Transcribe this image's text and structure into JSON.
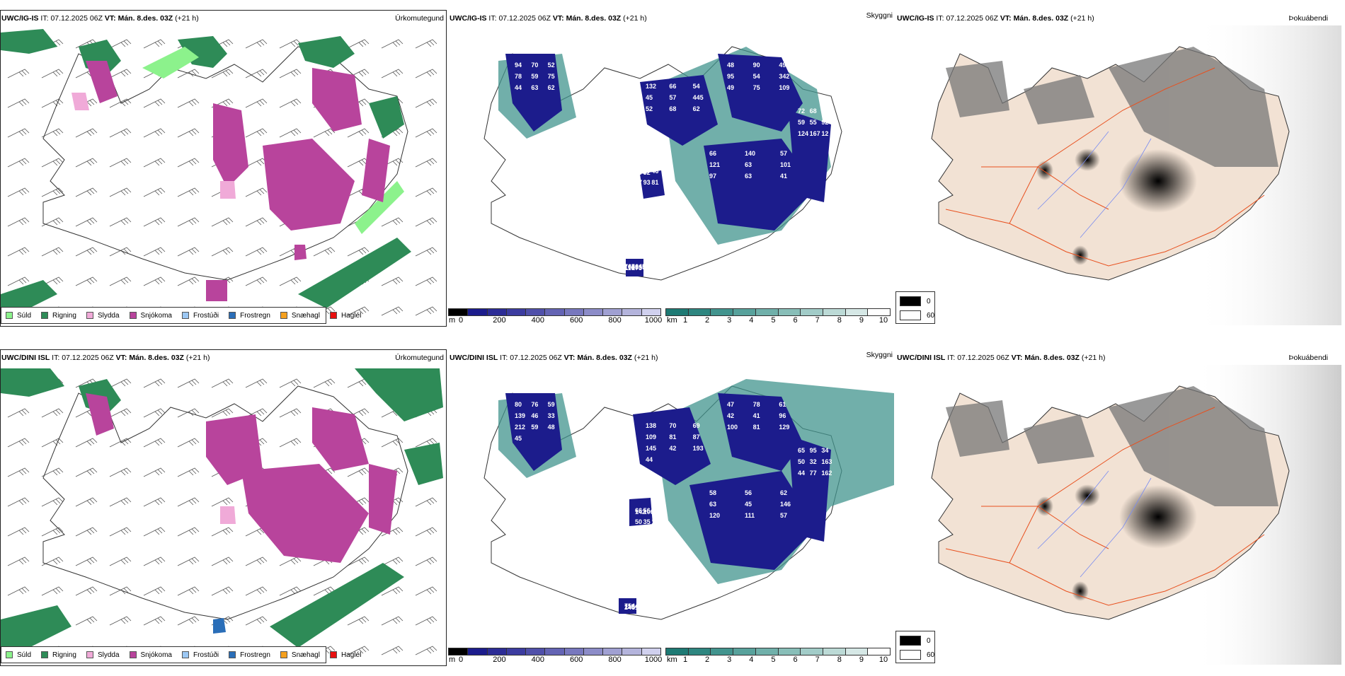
{
  "panels": [
    {
      "id": "top-precip",
      "model": "UWC/IG-IS",
      "it_label": "IT:",
      "it_value": "07.12.2025 06Z",
      "vt_label": "VT:",
      "vt_value": "Mán. 8.des. 03Z",
      "lead": "(+21 h)",
      "product": "Úrkomutegund"
    },
    {
      "id": "top-cloud",
      "model": "UWC/IG-IS",
      "it_label": "IT:",
      "it_value": "07.12.2025 06Z",
      "vt_label": "VT:",
      "vt_value": "Mán. 8.des. 03Z",
      "lead": "(+21 h)",
      "product": "Skyggni",
      "labels": [
        "94",
        "132",
        "48",
        "66",
        "72",
        "62",
        "76",
        "70",
        "66",
        "90",
        "140",
        "68",
        "57",
        "56",
        "52",
        "54",
        "49",
        "57",
        "43",
        "46",
        "45",
        "78",
        "45",
        "95",
        "121",
        "59",
        "57",
        "105",
        "59",
        "57",
        "54",
        "63",
        "55",
        "93",
        "88",
        "75",
        "445",
        "342",
        "101",
        "92",
        "81",
        "55",
        "44",
        "52",
        "49",
        "97",
        "124",
        "104",
        "116",
        "63",
        "68",
        "75",
        "63",
        "167",
        "82",
        "173",
        "62",
        "62",
        "109",
        "41",
        "12"
      ]
    },
    {
      "id": "top-fog",
      "model": "UWC/IG-IS",
      "it_label": "IT:",
      "it_value": "07.12.2025 06Z",
      "vt_label": "VT:",
      "vt_value": "Mán. 8.des. 03Z",
      "lead": "(+21 h)",
      "product": "Þokuábendi"
    },
    {
      "id": "bot-precip",
      "model": "UWC/DINI ISL",
      "it_label": "IT:",
      "it_value": "07.12.2025 06Z",
      "vt_label": "VT:",
      "vt_value": "Mán. 8.des. 03Z",
      "lead": "(+21 h)",
      "product": "Úrkomutegund"
    },
    {
      "id": "bot-cloud",
      "model": "UWC/DINI ISL",
      "it_label": "IT:",
      "it_value": "07.12.2025 06Z",
      "vt_label": "VT:",
      "vt_value": "Mán. 8.des. 03Z",
      "lead": "(+21 h)",
      "product": "Skyggni",
      "labels": [
        "80",
        "138",
        "47",
        "58",
        "65",
        "66",
        "75",
        "76",
        "70",
        "78",
        "56",
        "95",
        "56",
        "44",
        "59",
        "69",
        "61",
        "62",
        "34",
        "45",
        "44",
        "139",
        "109",
        "42",
        "63",
        "50",
        "50",
        "115",
        "46",
        "81",
        "41",
        "45",
        "32",
        "35",
        "34",
        "33",
        "87",
        "96",
        "146",
        "163",
        "147",
        "102",
        "212",
        "145",
        "100",
        "120",
        "44",
        "142",
        "244",
        "59",
        "42",
        "81",
        "111",
        "77",
        "106",
        "51",
        "48",
        "193",
        "129",
        "57",
        "162",
        "76",
        "73",
        "45",
        "44"
      ]
    },
    {
      "id": "bot-fog",
      "model": "UWC/DINI ISL",
      "it_label": "IT:",
      "it_value": "07.12.2025 06Z",
      "vt_label": "VT:",
      "vt_value": "Mán. 8.des. 03Z",
      "lead": "(+21 h)",
      "product": "Þokuábendi"
    }
  ],
  "precip_legend": [
    {
      "label": "Súld",
      "color": "#8cf28c"
    },
    {
      "label": "Rigning",
      "color": "#2e8b57"
    },
    {
      "label": "Slydda",
      "color": "#f0aad8"
    },
    {
      "label": "Snjókoma",
      "color": "#b8449c"
    },
    {
      "label": "Frostúði",
      "color": "#9cc8f4"
    },
    {
      "label": "Frostregn",
      "color": "#2a6eb8"
    },
    {
      "label": "Snæhagl",
      "color": "#f5a01e"
    },
    {
      "label": "Haglél",
      "color": "#e81010"
    }
  ],
  "height_bar": {
    "unit": "m",
    "ticks": [
      "0",
      "200",
      "400",
      "600",
      "800",
      "1000"
    ],
    "colors": [
      "#000000",
      "#1c1c8c",
      "#2c2c96",
      "#3c3ca0",
      "#5050aa",
      "#6464b4",
      "#7878be",
      "#8c8cc8",
      "#a0a0d2",
      "#b4b4dc",
      "#d0d0ee"
    ]
  },
  "visibility_bar": {
    "unit": "km",
    "ticks": [
      "1",
      "2",
      "3",
      "4",
      "5",
      "6",
      "7",
      "8",
      "9",
      "10"
    ],
    "colors": [
      "#1e7a74",
      "#2e8680",
      "#42948e",
      "#58a29c",
      "#70b0aa",
      "#88beb8",
      "#a2ccc8",
      "#bcdad6",
      "#d6e8e6",
      "#ffffff"
    ]
  },
  "fog_legend": [
    {
      "label": "0",
      "color": "#000000"
    },
    {
      "label": "60",
      "color": "#ffffff"
    }
  ]
}
